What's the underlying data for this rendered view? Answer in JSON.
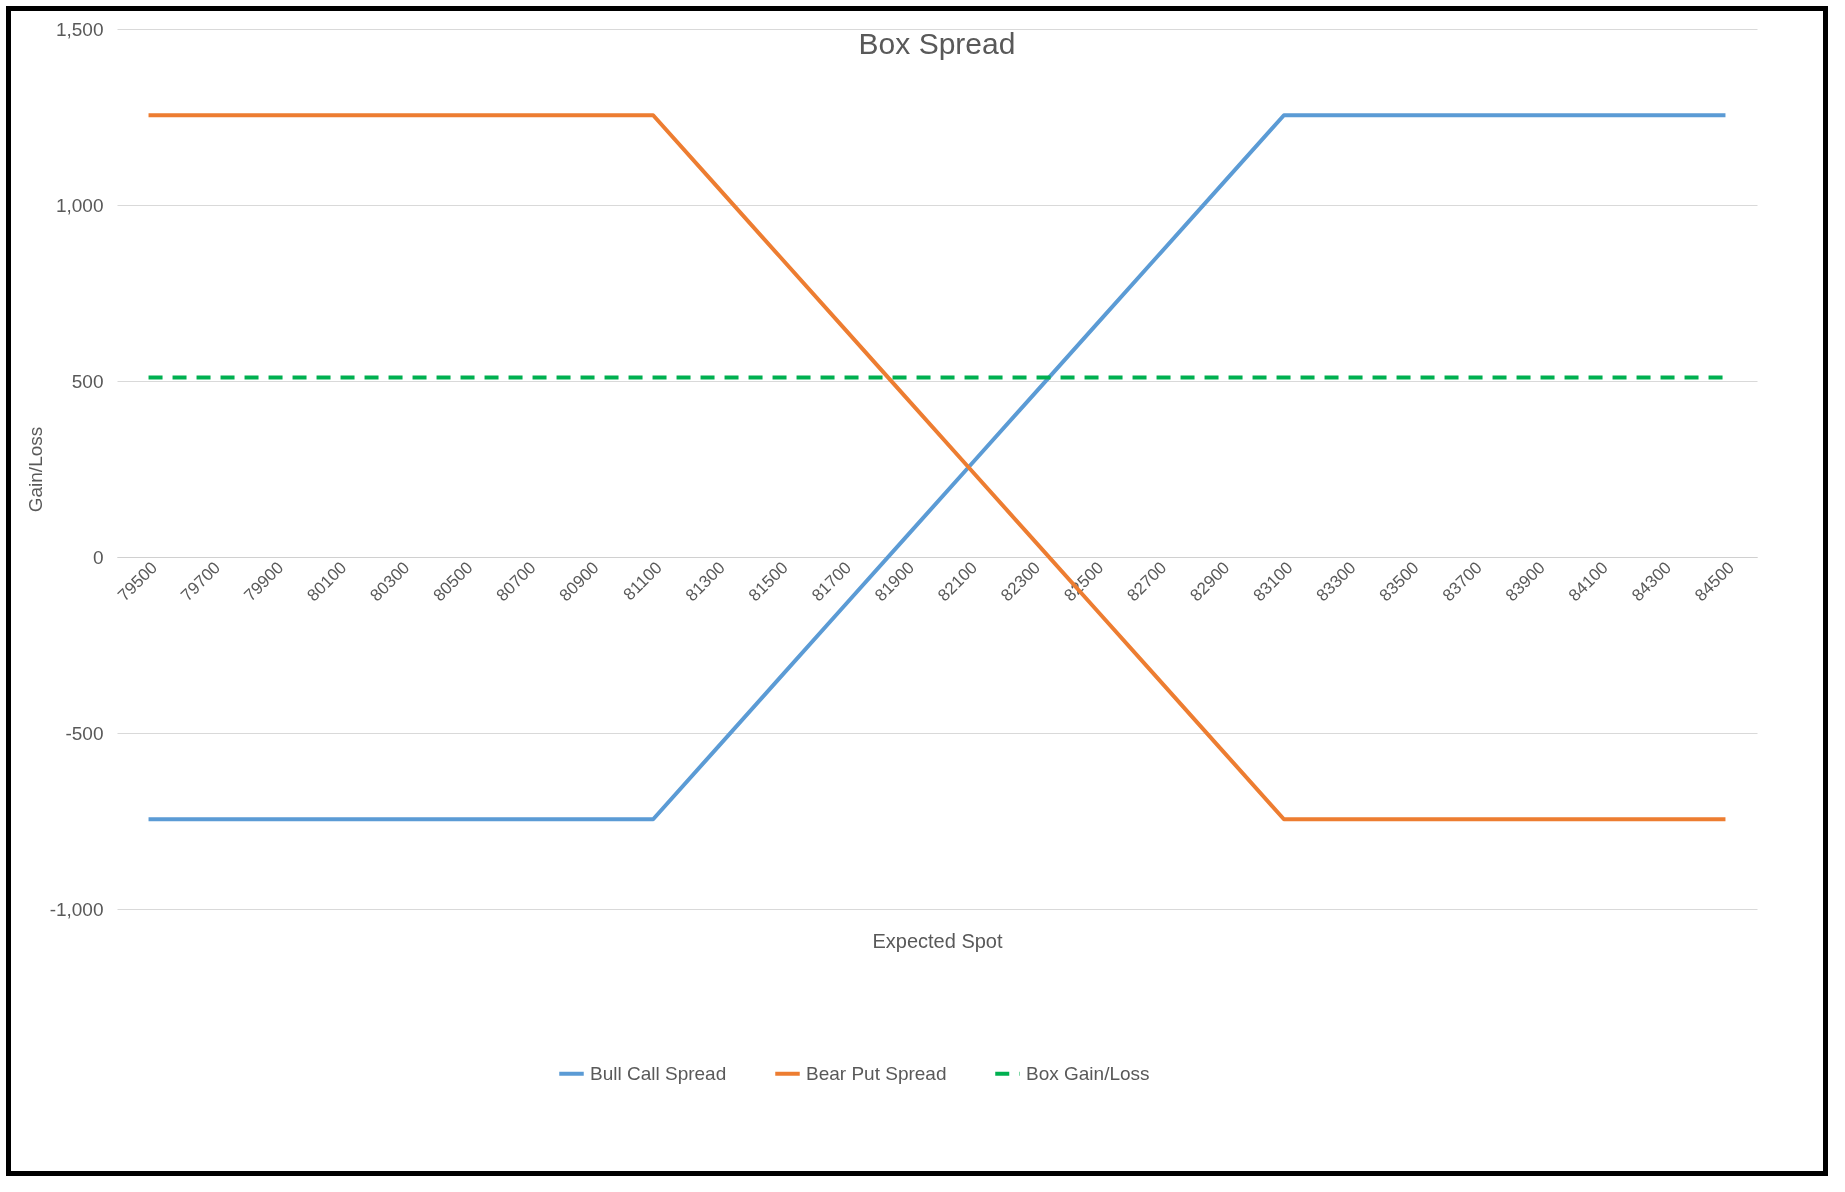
{
  "chart_data": {
    "type": "line",
    "title": "Box Spread",
    "xlabel": "Expected  Spot",
    "ylabel": "Gain/Loss",
    "categories": [
      "79500",
      "79700",
      "79900",
      "80100",
      "80300",
      "80500",
      "80700",
      "80900",
      "81100",
      "81300",
      "81500",
      "81700",
      "81900",
      "82100",
      "82300",
      "82500",
      "82700",
      "82900",
      "83100",
      "83300",
      "83500",
      "83700",
      "83900",
      "84100",
      "84300",
      "84500"
    ],
    "series": [
      {
        "name": "Bull Call Spread",
        "color": "#5b9bd5",
        "line_style": "solid",
        "values": [
          -745,
          -745,
          -745,
          -745,
          -745,
          -745,
          -745,
          -745,
          -745,
          -545,
          -345,
          -145,
          55,
          255,
          455,
          655,
          855,
          1055,
          1255,
          1255,
          1255,
          1255,
          1255,
          1255,
          1255,
          1255
        ]
      },
      {
        "name": "Bear Put Spread",
        "color": "#ed7d31",
        "line_style": "solid",
        "values": [
          1255,
          1255,
          1255,
          1255,
          1255,
          1255,
          1255,
          1255,
          1255,
          1055,
          855,
          655,
          455,
          255,
          55,
          -145,
          -345,
          -545,
          -745,
          -745,
          -745,
          -745,
          -745,
          -745,
          -745,
          -745
        ]
      },
      {
        "name": "Box Gain/Loss",
        "color": "#00b050",
        "line_style": "dashed",
        "values": [
          510,
          510,
          510,
          510,
          510,
          510,
          510,
          510,
          510,
          510,
          510,
          510,
          510,
          510,
          510,
          510,
          510,
          510,
          510,
          510,
          510,
          510,
          510,
          510,
          510,
          510
        ]
      }
    ],
    "ylim": [
      -1000,
      1500
    ],
    "yticks": [
      {
        "value": -1000,
        "label": "-1,000"
      },
      {
        "value": -500,
        "label": "-500"
      },
      0,
      500,
      {
        "value": 1000,
        "label": "1,000"
      },
      {
        "value": 1500,
        "label": "1,500"
      }
    ],
    "grid": "y",
    "legend": "bottom"
  }
}
